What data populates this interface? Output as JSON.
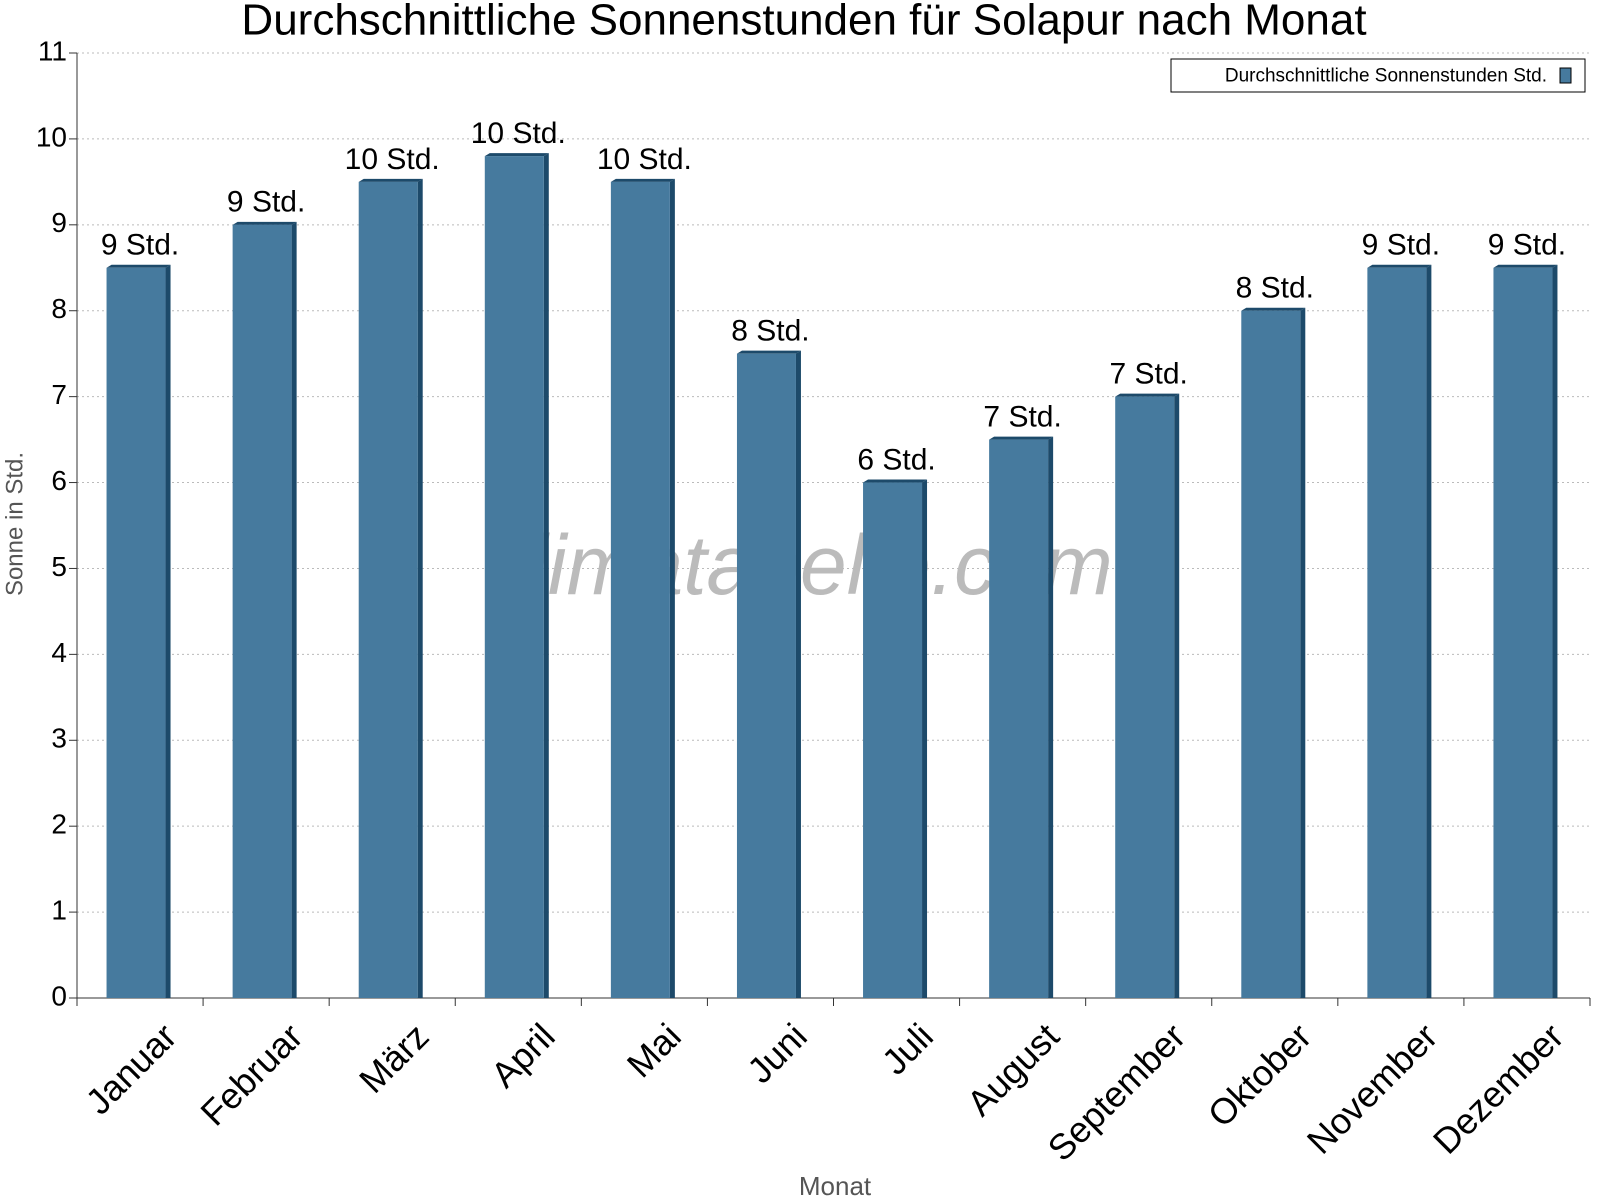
{
  "chart_data": {
    "type": "bar",
    "title": "Durchschnittliche Sonnenstunden für Solapur nach Monat",
    "x_label": "Monat",
    "y_label": "Sonne in Std.",
    "watermark": "klimatabelle.com",
    "categories": [
      "Januar",
      "Februar",
      "März",
      "April",
      "Mai",
      "Juni",
      "Juli",
      "August",
      "September",
      "Oktober",
      "November",
      "Dezember"
    ],
    "series": [
      {
        "name": "Durchschnittliche Sonnenstunden Std.",
        "color": "#467a9e",
        "values": [
          8.5,
          9,
          9.5,
          9.8,
          9.5,
          7.5,
          6,
          6.5,
          7,
          8,
          8.5,
          8.5
        ],
        "value_labels": [
          "9 Std.",
          "9 Std.",
          "10 Std.",
          "10 Std.",
          "10 Std.",
          "8 Std.",
          "6 Std.",
          "7 Std.",
          "7 Std.",
          "8 Std.",
          "9 Std.",
          "9 Std."
        ]
      }
    ],
    "ylim": [
      0,
      11
    ],
    "yticks": [
      0,
      1,
      2,
      3,
      4,
      5,
      6,
      7,
      8,
      9,
      10,
      11
    ],
    "grid": true,
    "legend": "top-right"
  }
}
